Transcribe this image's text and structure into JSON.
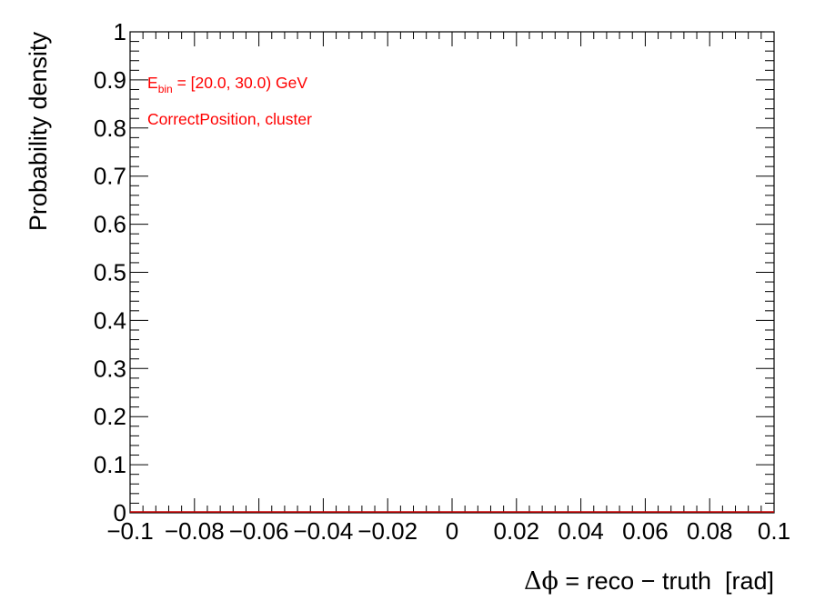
{
  "chart_data": {
    "type": "line",
    "title": "",
    "xlabel_symbol": "Δϕ",
    "xlabel_rest": " = reco − truth  [rad]",
    "ylabel": "Probability density",
    "xlim": [
      -0.1,
      0.1
    ],
    "ylim": [
      0,
      1
    ],
    "x_ticks": [
      "−0.1",
      "−0.08",
      "−0.06",
      "−0.04",
      "−0.02",
      "0",
      "0.02",
      "0.04",
      "0.06",
      "0.08",
      "0.1"
    ],
    "x_tick_values": [
      -0.1,
      -0.08,
      -0.06,
      -0.04,
      -0.02,
      0,
      0.02,
      0.04,
      0.06,
      0.08,
      0.1
    ],
    "y_ticks": [
      "0",
      "0.1",
      "0.2",
      "0.3",
      "0.4",
      "0.5",
      "0.6",
      "0.7",
      "0.8",
      "0.9",
      "1"
    ],
    "y_tick_values": [
      0,
      0.1,
      0.2,
      0.3,
      0.4,
      0.5,
      0.6,
      0.7,
      0.8,
      0.9,
      1
    ],
    "series": [
      {
        "x": [
          -0.1,
          0.1
        ],
        "y": [
          0,
          0
        ],
        "color": "#cc0000"
      }
    ],
    "annotations": {
      "ebin_prefix": "E",
      "ebin_sub": "bin",
      "ebin_rest": " = [20.0, 30.0) GeV",
      "line2": "CorrectPosition, cluster"
    },
    "grid": false,
    "legend": "none",
    "colors": {
      "axis": "#000000",
      "annotation": "#ff0000",
      "series": "#cc0000"
    }
  }
}
